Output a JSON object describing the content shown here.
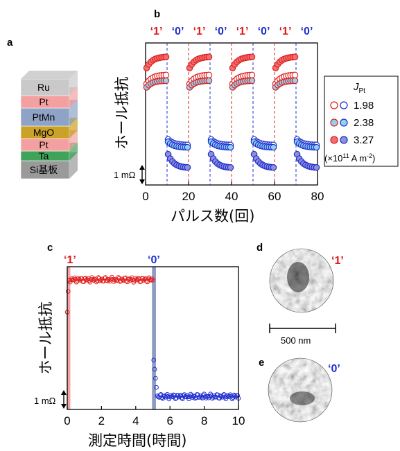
{
  "panel_labels": {
    "a": "a",
    "b": "b",
    "c": "c",
    "d": "d",
    "e": "e"
  },
  "stack": {
    "layers": [
      {
        "label": "Ru",
        "color": "#c9c9c9"
      },
      {
        "label": "Pt",
        "color": "#f4a0a0"
      },
      {
        "label": "PtMn",
        "color": "#8ea3c6"
      },
      {
        "label": "MgO",
        "color": "#c9a227"
      },
      {
        "label": "Pt",
        "color": "#f4a0a0"
      },
      {
        "label": "Ta",
        "color": "#3fa45a"
      },
      {
        "label": "Si基板",
        "color": "#9a9a9a"
      }
    ]
  },
  "chart_data": [
    {
      "type": "scatter",
      "panel": "b",
      "xlabel": "パルス数(回)",
      "ylabel": "ホール抵抗",
      "xlim": [
        0,
        80
      ],
      "xticks": [
        "0",
        "20",
        "40",
        "60",
        "80"
      ],
      "scale_bar_label": "1 mΩ",
      "state_labels": [
        "‘1’",
        "‘0’",
        "‘1’",
        "‘0’",
        "‘1’",
        "‘0’",
        "‘1’",
        "‘0’"
      ],
      "pulse_boundaries": [
        10,
        20,
        30,
        40,
        50,
        60,
        70
      ],
      "legend_title": "J",
      "legend_subscript": "Pt",
      "legend_unit": "(×10",
      "legend_unit_exp": "11",
      "legend_unit_tail": " A m",
      "legend_unit_exp2": "-2",
      "legend_unit_close": ")",
      "series": [
        {
          "name": "1.98",
          "fill": "#ffffff",
          "stroke_high": "#e02020",
          "stroke_low": "#1f2fd0",
          "high_start": 8.9,
          "high_end": 9.7,
          "low_start": 4.0,
          "low_end": 3.5
        },
        {
          "name": "2.38",
          "fill": "#8fd3f0",
          "stroke_high": "#e02020",
          "stroke_low": "#1f2fd0",
          "high_start": 8.6,
          "high_end": 9.2,
          "low_start": 3.8,
          "low_end": 3.3
        },
        {
          "name": "3.27",
          "fill": "#f07070",
          "fill_low": "#9090d8",
          "stroke_high": "#e02020",
          "stroke_low": "#1f2fd0",
          "high_start": 10.3,
          "high_end": 11.3,
          "low_start": 2.7,
          "low_end": 1.5
        }
      ]
    },
    {
      "type": "scatter",
      "panel": "c",
      "xlabel": "測定時間(時間)",
      "ylabel": "ホール抵抗",
      "xlim": [
        0,
        10
      ],
      "xticks": [
        "0",
        "2",
        "4",
        "6",
        "8",
        "10"
      ],
      "scale_bar_label": "1 mΩ",
      "state_labels": [
        "‘1’",
        "‘0’"
      ],
      "series": [
        {
          "name": "1",
          "x_start": 0.0,
          "x_end": 5.0,
          "level": 10.0,
          "color": "#e02020"
        },
        {
          "name": "0",
          "x_start": 5.05,
          "x_end": 10.0,
          "level": 1.0,
          "color": "#1f2fd0"
        }
      ],
      "shaded": [
        {
          "x_start": 0.0,
          "x_end": 0.18,
          "color": "#f4a3a3"
        },
        {
          "x_start": 4.95,
          "x_end": 5.18,
          "color": "#8f9bc2"
        }
      ]
    }
  ],
  "images": {
    "d_label": "‘1’",
    "e_label": "‘0’",
    "scale_bar": "500 nm"
  }
}
